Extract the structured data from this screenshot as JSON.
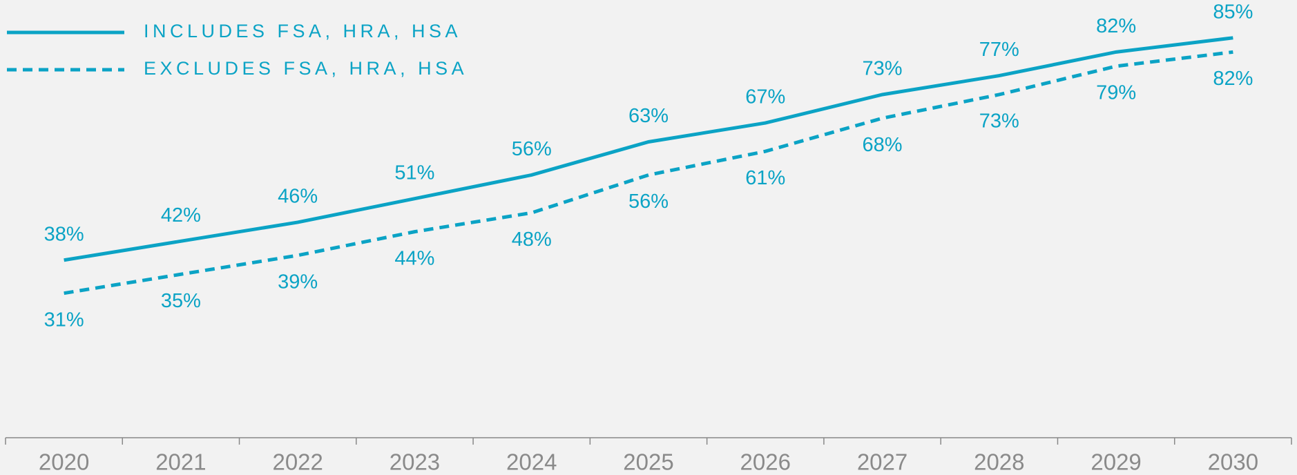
{
  "chart_data": {
    "type": "line",
    "categories": [
      "2020",
      "2021",
      "2022",
      "2023",
      "2024",
      "2025",
      "2026",
      "2027",
      "2028",
      "2029",
      "2030"
    ],
    "series": [
      {
        "name": "INCLUDES FSA, HRA, HSA",
        "color": "#0ba3c5",
        "line_style": "solid",
        "values": [
          38,
          42,
          46,
          51,
          56,
          63,
          67,
          73,
          77,
          82,
          85
        ],
        "value_labels": [
          "38%",
          "42%",
          "46%",
          "51%",
          "56%",
          "63%",
          "67%",
          "73%",
          "77%",
          "82%",
          "85%"
        ]
      },
      {
        "name": "EXCLUDES FSA, HRA, HSA",
        "color": "#0ba3c5",
        "line_style": "dashed",
        "values": [
          31,
          35,
          39,
          44,
          48,
          56,
          61,
          68,
          73,
          79,
          82
        ],
        "value_labels": [
          "31%",
          "35%",
          "39%",
          "44%",
          "48%",
          "56%",
          "61%",
          "68%",
          "73%",
          "79%",
          "82%"
        ]
      }
    ],
    "ylim": [
      0,
      93
    ],
    "legend": "top-left"
  }
}
